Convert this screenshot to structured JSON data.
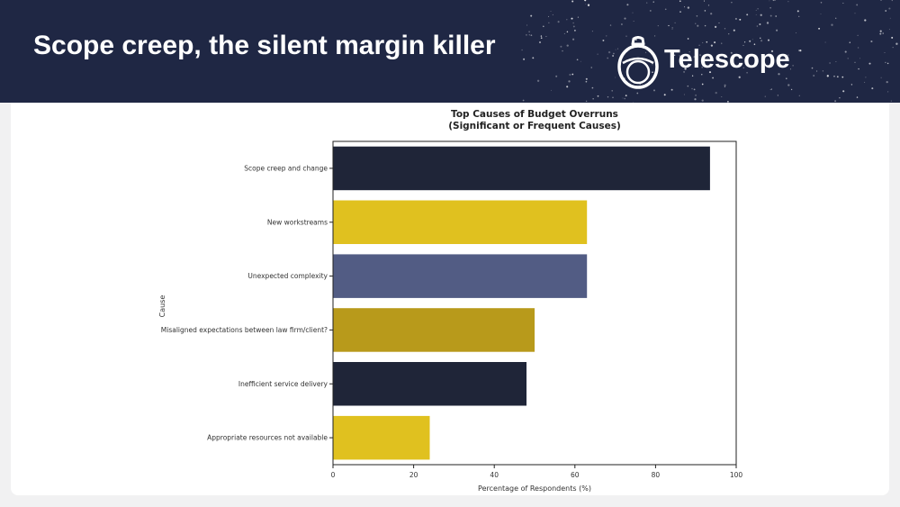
{
  "slide": {
    "title": "Scope creep, the silent margin killer"
  },
  "brand": {
    "name": "Telescope",
    "logo_icon": "telescope-lens-icon",
    "header_color": "#1f2744"
  },
  "chart_data": {
    "type": "bar",
    "orientation": "horizontal",
    "title": "Top Causes of Budget Overruns",
    "subtitle": "(Significant or Frequent Causes)",
    "xlabel": "Percentage of Respondents (%)",
    "ylabel": "Cause",
    "xlim": [
      0,
      100
    ],
    "xticks": [
      0,
      20,
      40,
      60,
      80,
      100
    ],
    "grid": false,
    "categories": [
      "Scope creep and change",
      "New workstreams",
      "Unexpected complexity",
      "Misaligned expectations between law firm/client?",
      "Inefficient service delivery",
      "Appropriate resources not available"
    ],
    "values": [
      93.5,
      63,
      63,
      50,
      48,
      24
    ],
    "colors": [
      "#1f2538",
      "#e0c11f",
      "#525c84",
      "#b89a1b",
      "#1f2538",
      "#e0c11f"
    ]
  }
}
